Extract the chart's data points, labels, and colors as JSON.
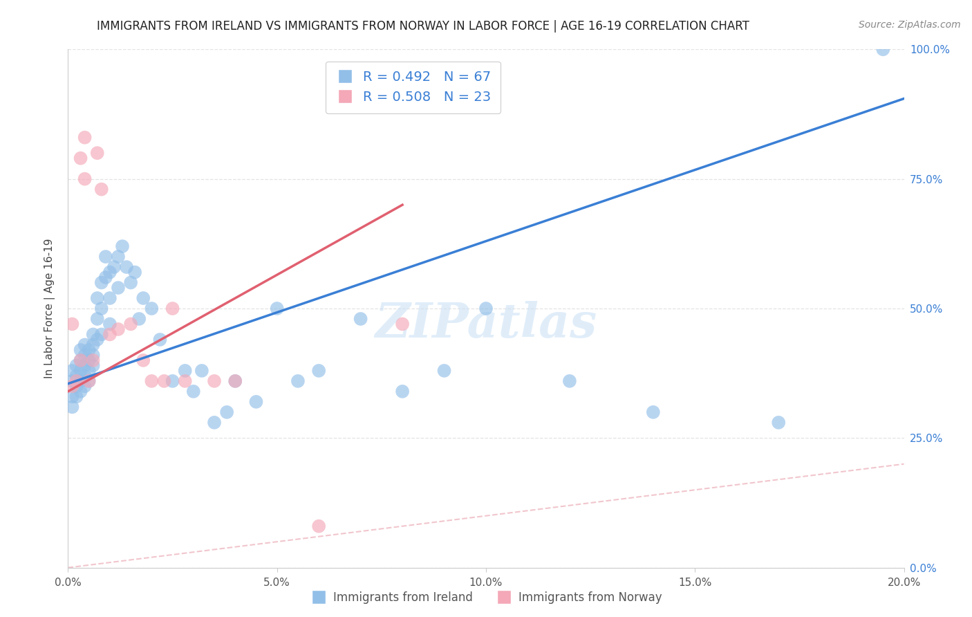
{
  "title": "IMMIGRANTS FROM IRELAND VS IMMIGRANTS FROM NORWAY IN LABOR FORCE | AGE 16-19 CORRELATION CHART",
  "source": "Source: ZipAtlas.com",
  "ylabel": "In Labor Force | Age 16-19",
  "xlabel_ticks": [
    "0.0%",
    "5.0%",
    "10.0%",
    "15.0%",
    "20.0%"
  ],
  "xlabel_vals": [
    0.0,
    0.05,
    0.1,
    0.15,
    0.2
  ],
  "ylabel_ticks": [
    "0.0%",
    "25.0%",
    "50.0%",
    "75.0%",
    "100.0%"
  ],
  "ylabel_vals": [
    0.0,
    0.25,
    0.5,
    0.75,
    1.0
  ],
  "xmin": 0.0,
  "xmax": 0.2,
  "ymin": 0.0,
  "ymax": 1.0,
  "ireland_R": 0.492,
  "ireland_N": 67,
  "norway_R": 0.508,
  "norway_N": 23,
  "ireland_color": "#92bfe8",
  "norway_color": "#f4a8b8",
  "ireland_line_color": "#3a7fd5",
  "norway_line_color": "#e06070",
  "ref_line_color": "#f0c0c8",
  "legend_label_ireland": "Immigrants from Ireland",
  "legend_label_norway": "Immigrants from Norway",
  "background_color": "#ffffff",
  "grid_color": "#dddddd",
  "title_color": "#222222",
  "axis_label_color": "#444444",
  "tick_color": "#555555",
  "right_tick_color": "#3a7fd5",
  "ireland_line_x0": 0.0,
  "ireland_line_y0": 0.355,
  "ireland_line_x1": 0.2,
  "ireland_line_y1": 0.905,
  "norway_line_x0": 0.0,
  "norway_line_y0": 0.34,
  "norway_line_x1": 0.08,
  "norway_line_y1": 0.7,
  "ireland_scatter_x": [
    0.001,
    0.001,
    0.001,
    0.001,
    0.002,
    0.002,
    0.002,
    0.002,
    0.003,
    0.003,
    0.003,
    0.003,
    0.003,
    0.004,
    0.004,
    0.004,
    0.004,
    0.004,
    0.005,
    0.005,
    0.005,
    0.005,
    0.006,
    0.006,
    0.006,
    0.006,
    0.007,
    0.007,
    0.007,
    0.008,
    0.008,
    0.008,
    0.009,
    0.009,
    0.01,
    0.01,
    0.01,
    0.011,
    0.012,
    0.012,
    0.013,
    0.014,
    0.015,
    0.016,
    0.017,
    0.018,
    0.02,
    0.022,
    0.025,
    0.028,
    0.03,
    0.032,
    0.035,
    0.038,
    0.04,
    0.045,
    0.05,
    0.055,
    0.06,
    0.07,
    0.08,
    0.09,
    0.1,
    0.12,
    0.14,
    0.17,
    0.195
  ],
  "ireland_scatter_y": [
    0.38,
    0.36,
    0.33,
    0.31,
    0.37,
    0.39,
    0.35,
    0.33,
    0.4,
    0.38,
    0.42,
    0.36,
    0.34,
    0.41,
    0.39,
    0.37,
    0.35,
    0.43,
    0.42,
    0.4,
    0.38,
    0.36,
    0.43,
    0.41,
    0.45,
    0.39,
    0.44,
    0.48,
    0.52,
    0.45,
    0.5,
    0.55,
    0.56,
    0.6,
    0.47,
    0.52,
    0.57,
    0.58,
    0.54,
    0.6,
    0.62,
    0.58,
    0.55,
    0.57,
    0.48,
    0.52,
    0.5,
    0.44,
    0.36,
    0.38,
    0.34,
    0.38,
    0.28,
    0.3,
    0.36,
    0.32,
    0.5,
    0.36,
    0.38,
    0.48,
    0.34,
    0.38,
    0.5,
    0.36,
    0.3,
    0.28,
    1.0
  ],
  "norway_scatter_x": [
    0.001,
    0.001,
    0.002,
    0.003,
    0.003,
    0.004,
    0.004,
    0.005,
    0.006,
    0.007,
    0.008,
    0.01,
    0.012,
    0.015,
    0.018,
    0.02,
    0.023,
    0.025,
    0.028,
    0.035,
    0.04,
    0.06,
    0.08
  ],
  "norway_scatter_y": [
    0.47,
    0.35,
    0.36,
    0.4,
    0.79,
    0.75,
    0.83,
    0.36,
    0.4,
    0.8,
    0.73,
    0.45,
    0.46,
    0.47,
    0.4,
    0.36,
    0.36,
    0.5,
    0.36,
    0.36,
    0.36,
    0.08,
    0.47
  ]
}
